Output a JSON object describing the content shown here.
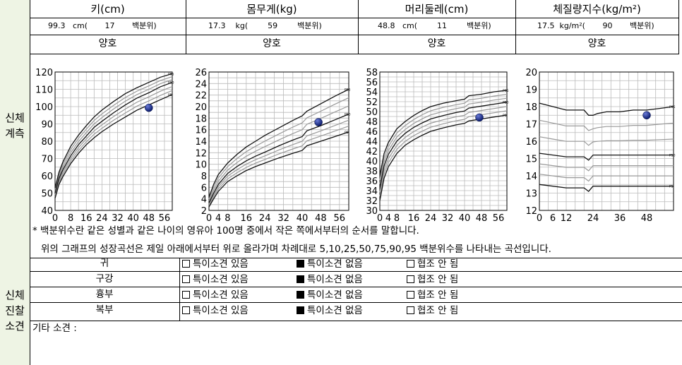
{
  "side": {
    "measure": [
      "신체",
      "계측"
    ],
    "exam": [
      "신체",
      "진찰",
      "소견"
    ]
  },
  "columns": [
    {
      "header": "키(cm)",
      "value": "99.3",
      "unit": "cm(",
      "pct": "17",
      "pct_label": "백분위)",
      "status": "양호"
    },
    {
      "header": "몸무게(kg)",
      "value": "17.3",
      "unit": "kg(",
      "pct": "59",
      "pct_label": "백분위)",
      "status": "양호"
    },
    {
      "header": "머리둘레(cm)",
      "value": "48.8",
      "unit": "cm(",
      "pct": "11",
      "pct_label": "백분위)",
      "status": "양호"
    },
    {
      "header": "체질량지수(kg/m²)",
      "value": "17.5",
      "unit": "kg/m²(",
      "pct": "90",
      "pct_label": "백분위)",
      "status": "양호"
    }
  ],
  "notes": {
    "line1": "* 백분위수란 같은 성별과 같은 나이의 영유아 100명 중에서 작은 쪽에서부터의 순서를 말합니다.",
    "line2": "위의 그래프의 성장곡선은 제일 아래에서부터 위로 올라가며 차례대로 5,10,25,50,75,90,95 백분위수를 나타내는 곡선입니다."
  },
  "exam_rows": [
    {
      "label": "귀",
      "opt1": "특이소견  있음",
      "opt2": "특이소견 없음",
      "opt3": "협조 안 됨",
      "checked": 2
    },
    {
      "label": "구강",
      "opt1": "특이소견  있음",
      "opt2": "특이소견 없음",
      "opt3": "협조 안 됨",
      "checked": 2
    },
    {
      "label": "흉부",
      "opt1": "특이소견  있음",
      "opt2": "특이소견 없음",
      "opt3": "협조 안 됨",
      "checked": 2
    },
    {
      "label": "복부",
      "opt1": "특이소견  있음",
      "opt2": "특이소견 없음",
      "opt3": "협조 안 됨",
      "checked": 2
    }
  ],
  "other_findings_label": "기타 소견 :",
  "chart_data": [
    {
      "type": "line",
      "xticks": [
        "0",
        "8",
        "16",
        "24",
        "32",
        "40",
        "48",
        "56"
      ],
      "yticks": [
        "40",
        "50",
        "60",
        "70",
        "80",
        "90",
        "100",
        "110",
        "120"
      ],
      "ylim": [
        40,
        120
      ],
      "xlim": [
        0,
        60
      ],
      "curve_labels": [
        "P95",
        "P50",
        "P5"
      ],
      "point": {
        "x": 48,
        "y": 99.3
      },
      "curves": {
        "x": [
          0,
          2,
          4,
          8,
          12,
          16,
          20,
          24,
          30,
          36,
          42,
          48,
          54,
          60
        ],
        "p95": [
          53,
          62,
          68,
          77,
          83.5,
          89,
          94,
          98,
          103,
          107.5,
          111,
          114,
          117,
          119
        ],
        "p50": [
          50,
          58.5,
          63.5,
          71.5,
          78,
          83,
          88,
          91.5,
          96.5,
          101,
          105,
          108,
          111.5,
          114
        ],
        "p5": [
          47,
          55,
          59.5,
          67,
          73,
          78,
          82,
          85.5,
          90,
          94,
          98,
          101,
          104,
          107
        ]
      },
      "ymajor": 10,
      "yminor": 5
    },
    {
      "type": "line",
      "xticks": [
        "0",
        "4",
        "8",
        "16",
        "24",
        "32",
        "40",
        "48",
        "56"
      ],
      "yticks": [
        "2",
        "4",
        "6",
        "8",
        "10",
        "12",
        "14",
        "16",
        "18",
        "20",
        "22",
        "24",
        "26"
      ],
      "ylim": [
        2,
        26
      ],
      "xlim": [
        0,
        60
      ],
      "curve_labels": [
        "P95",
        "P50",
        "P5"
      ],
      "point": {
        "x": 47,
        "y": 17.3
      },
      "curves": {
        "x": [
          0,
          2,
          4,
          8,
          12,
          16,
          20,
          24,
          30,
          36,
          40,
          42,
          48,
          54,
          60
        ],
        "p95": [
          4.3,
          6.5,
          8.2,
          10.2,
          11.7,
          13,
          14,
          15,
          16.3,
          17.6,
          18.4,
          19.2,
          20.5,
          21.8,
          23
        ],
        "p50": [
          3.3,
          5,
          6.5,
          8.4,
          9.6,
          10.6,
          11.4,
          12.1,
          13.2,
          14.2,
          14.8,
          15.8,
          16.7,
          17.7,
          18.7
        ],
        "p5": [
          2.6,
          4,
          5.3,
          7,
          8,
          8.9,
          9.6,
          10.2,
          11.1,
          11.9,
          12.4,
          13.2,
          14,
          14.8,
          15.6
        ]
      },
      "ymajor": 2,
      "yminor": 1
    },
    {
      "type": "line",
      "xticks": [
        "0",
        "4",
        "8",
        "16",
        "24",
        "32",
        "40",
        "48",
        "56"
      ],
      "yticks": [
        "30",
        "32",
        "34",
        "36",
        "38",
        "40",
        "42",
        "44",
        "46",
        "48",
        "50",
        "52",
        "54",
        "56",
        "58"
      ],
      "ylim": [
        30,
        58
      ],
      "xlim": [
        0,
        60
      ],
      "curve_labels": [
        "P95",
        "P50",
        "P5"
      ],
      "point": {
        "x": 47,
        "y": 48.8
      },
      "curves": {
        "x": [
          0,
          2,
          4,
          8,
          12,
          16,
          20,
          24,
          30,
          36,
          40,
          42,
          48,
          54,
          60
        ],
        "p95": [
          37,
          41.5,
          43.7,
          46.5,
          48,
          49.2,
          50.2,
          51,
          51.7,
          52.2,
          52.5,
          53.2,
          53.5,
          54,
          54.3
        ],
        "p50": [
          34.5,
          39,
          41.3,
          44,
          45.6,
          46.8,
          47.7,
          48.5,
          49.2,
          49.8,
          50.1,
          50.7,
          51.1,
          51.5,
          51.9
        ],
        "p5": [
          32,
          36.5,
          38.8,
          41.5,
          43.2,
          44.3,
          45.2,
          46,
          46.7,
          47.3,
          47.6,
          48.1,
          48.5,
          48.9,
          49.3
        ]
      },
      "ymajor": 2,
      "yminor": 1
    },
    {
      "type": "line",
      "xticks": [
        "0",
        "6",
        "12",
        "24",
        "36",
        "48"
      ],
      "yticks": [
        "12",
        "13",
        "14",
        "15",
        "16",
        "17",
        "18",
        "19",
        "20"
      ],
      "ylim": [
        12,
        20
      ],
      "xlim": [
        0,
        60
      ],
      "curve_labels": [
        "P95",
        "P50",
        "P5"
      ],
      "point": {
        "x": 48,
        "y": 17.5
      },
      "curves": {
        "x": [
          0,
          6,
          12,
          20,
          22,
          24,
          26,
          30,
          36,
          42,
          48,
          54,
          60
        ],
        "p95": [
          18.2,
          18,
          17.8,
          17.8,
          17.5,
          17.5,
          17.6,
          17.7,
          17.7,
          17.8,
          17.8,
          17.9,
          18
        ],
        "p50": [
          15.3,
          15.2,
          15.1,
          15.1,
          14.9,
          15.2,
          15.2,
          15.2,
          15.2,
          15.2,
          15.2,
          15.2,
          15.2
        ],
        "p5": [
          13.5,
          13.4,
          13.3,
          13.3,
          13.1,
          13.4,
          13.4,
          13.4,
          13.4,
          13.4,
          13.4,
          13.4,
          13.4
        ]
      },
      "ymajor": 1,
      "yminor": 0.5
    }
  ]
}
